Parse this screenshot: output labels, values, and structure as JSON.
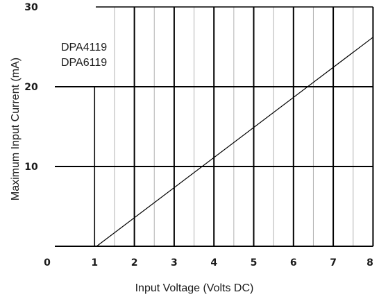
{
  "chart_data": {
    "type": "line",
    "xlabel": "Input Voltage (Volts DC)",
    "ylabel": "Maximum Input Current (mA)",
    "x_ticks": [
      "0",
      "1",
      "2",
      "3",
      "4",
      "5",
      "6",
      "7",
      "8"
    ],
    "y_ticks": [
      "10",
      "20",
      "30"
    ],
    "xlim": [
      0,
      8
    ],
    "ylim": [
      0,
      30
    ],
    "annotations": [
      "DPA4119",
      "DPA6119"
    ],
    "series": [
      {
        "x": [
          1.05,
          8.0
        ],
        "y": [
          0,
          26.2
        ]
      }
    ],
    "grid": true,
    "colors": {
      "line": "#000000",
      "major_grid": "#000000",
      "minor_grid": "#b0b0b0"
    }
  }
}
